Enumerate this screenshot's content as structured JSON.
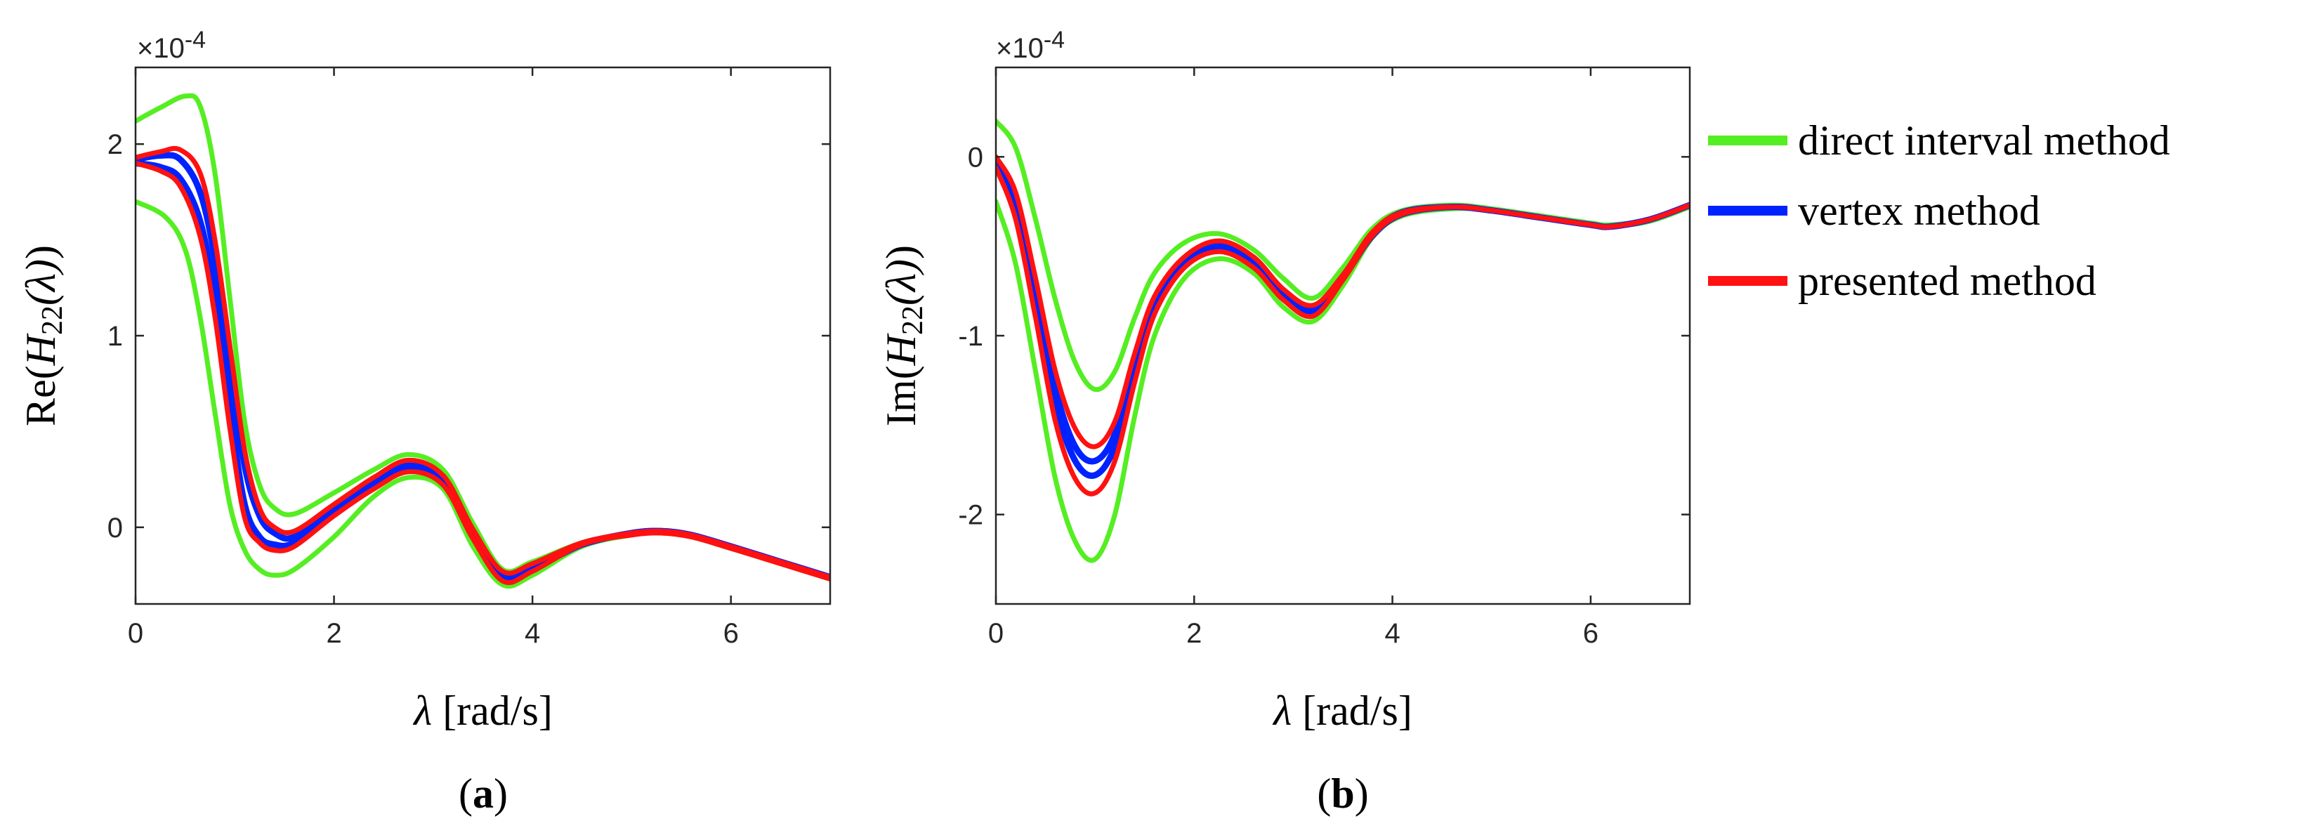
{
  "colors": {
    "direct": "#55ee22",
    "vertex": "#0022ff",
    "presented": "#ff1111"
  },
  "legend": [
    {
      "label": "direct interval method",
      "color": "#55ee22"
    },
    {
      "label": "vertex method",
      "color": "#0022ff"
    },
    {
      "label": "presented method",
      "color": "#ff1111"
    }
  ],
  "chart_data": [
    {
      "type": "line",
      "panel_label": "a",
      "multiplier": "10",
      "multiplier_exp": "-4",
      "ylabel_prefix": "Re(",
      "ylabel_var": "H",
      "ylabel_sub": "22",
      "ylabel_arg": "(λ)",
      "ylabel_suffix": ")",
      "xlabel_var": "λ",
      "xlabel_unit": " [rad/s]",
      "xlim": [
        0,
        7
      ],
      "ylim": [
        -0.4,
        2.4
      ],
      "xticks": [
        0,
        2,
        4,
        6
      ],
      "yticks": [
        0,
        1,
        2
      ],
      "series": [
        {
          "role": "direct-upper",
          "color": "#55ee22",
          "x": [
            0,
            0.25,
            0.5,
            0.65,
            0.8,
            0.95,
            1.1,
            1.25,
            1.4,
            1.6,
            2.0,
            2.4,
            2.75,
            3.1,
            3.4,
            3.7,
            4.0,
            4.5,
            5.0,
            5.3,
            5.6,
            6.0,
            6.5,
            7.0
          ],
          "y": [
            2.12,
            2.19,
            2.25,
            2.2,
            1.85,
            1.2,
            0.55,
            0.22,
            0.1,
            0.07,
            0.18,
            0.3,
            0.38,
            0.3,
            0.02,
            -0.22,
            -0.18,
            -0.08,
            -0.03,
            -0.02,
            -0.04,
            -0.1,
            -0.18,
            -0.26
          ]
        },
        {
          "role": "direct-lower",
          "color": "#55ee22",
          "x": [
            0,
            0.3,
            0.5,
            0.65,
            0.8,
            0.95,
            1.1,
            1.25,
            1.4,
            1.6,
            2.0,
            2.4,
            2.75,
            3.1,
            3.4,
            3.7,
            4.0,
            4.5,
            5.0,
            5.3,
            5.6,
            6.0,
            6.5,
            7.0
          ],
          "y": [
            1.7,
            1.62,
            1.45,
            1.1,
            0.6,
            0.12,
            -0.12,
            -0.22,
            -0.25,
            -0.22,
            -0.05,
            0.16,
            0.26,
            0.2,
            -0.1,
            -0.3,
            -0.25,
            -0.1,
            -0.04,
            -0.03,
            -0.05,
            -0.11,
            -0.19,
            -0.27
          ]
        },
        {
          "role": "vertex-upper",
          "color": "#0022ff",
          "x": [
            0,
            0.25,
            0.45,
            0.65,
            0.8,
            0.95,
            1.1,
            1.25,
            1.4,
            1.6,
            2.0,
            2.4,
            2.75,
            3.1,
            3.4,
            3.7,
            4.0,
            4.5,
            5.0,
            5.3,
            5.6,
            6.0,
            6.5,
            7.0
          ],
          "y": [
            1.92,
            1.94,
            1.92,
            1.75,
            1.4,
            0.85,
            0.32,
            0.06,
            -0.03,
            -0.05,
            0.1,
            0.24,
            0.33,
            0.26,
            -0.02,
            -0.24,
            -0.2,
            -0.09,
            -0.03,
            -0.02,
            -0.04,
            -0.1,
            -0.18,
            -0.26
          ]
        },
        {
          "role": "vertex-lower",
          "color": "#0022ff",
          "x": [
            0,
            0.25,
            0.45,
            0.65,
            0.8,
            0.95,
            1.1,
            1.25,
            1.4,
            1.6,
            2.0,
            2.4,
            2.75,
            3.1,
            3.4,
            3.7,
            4.0,
            4.5,
            5.0,
            5.3,
            5.6,
            6.0,
            6.5,
            7.0
          ],
          "y": [
            1.9,
            1.88,
            1.82,
            1.6,
            1.2,
            0.62,
            0.12,
            -0.05,
            -0.09,
            -0.08,
            0.08,
            0.22,
            0.31,
            0.24,
            -0.04,
            -0.27,
            -0.22,
            -0.09,
            -0.03,
            -0.02,
            -0.04,
            -0.1,
            -0.18,
            -0.26
          ]
        },
        {
          "role": "presented-upper",
          "color": "#ff1111",
          "x": [
            0,
            0.25,
            0.45,
            0.65,
            0.8,
            0.95,
            1.1,
            1.25,
            1.4,
            1.6,
            2.0,
            2.4,
            2.75,
            3.1,
            3.4,
            3.7,
            4.0,
            4.5,
            5.0,
            5.3,
            5.6,
            6.0,
            6.5,
            7.0
          ],
          "y": [
            1.93,
            1.96,
            1.97,
            1.85,
            1.5,
            0.95,
            0.4,
            0.1,
            0.0,
            -0.02,
            0.12,
            0.26,
            0.35,
            0.27,
            -0.01,
            -0.23,
            -0.19,
            -0.08,
            -0.03,
            -0.02,
            -0.04,
            -0.1,
            -0.18,
            -0.26
          ]
        },
        {
          "role": "presented-lower",
          "color": "#ff1111",
          "x": [
            0,
            0.25,
            0.45,
            0.65,
            0.8,
            0.95,
            1.1,
            1.25,
            1.4,
            1.6,
            2.0,
            2.4,
            2.75,
            3.1,
            3.4,
            3.7,
            4.0,
            4.5,
            5.0,
            5.3,
            5.6,
            6.0,
            6.5,
            7.0
          ],
          "y": [
            1.9,
            1.86,
            1.78,
            1.52,
            1.1,
            0.52,
            0.05,
            -0.08,
            -0.12,
            -0.1,
            0.06,
            0.2,
            0.29,
            0.22,
            -0.06,
            -0.28,
            -0.23,
            -0.09,
            -0.04,
            -0.03,
            -0.05,
            -0.11,
            -0.19,
            -0.27
          ]
        }
      ]
    },
    {
      "type": "line",
      "panel_label": "b",
      "multiplier": "10",
      "multiplier_exp": "-4",
      "ylabel_prefix": "Im(",
      "ylabel_var": "H",
      "ylabel_sub": "22",
      "ylabel_arg": "(λ)",
      "ylabel_suffix": ")",
      "xlabel_var": "λ",
      "xlabel_unit": " [rad/s]",
      "xlim": [
        0,
        7
      ],
      "ylim": [
        -2.5,
        0.5
      ],
      "xticks": [
        0,
        2,
        4,
        6
      ],
      "yticks": [
        -2,
        -1,
        0
      ],
      "series": [
        {
          "role": "direct-upper",
          "color": "#55ee22",
          "x": [
            0,
            0.2,
            0.4,
            0.6,
            0.8,
            1.0,
            1.2,
            1.4,
            1.6,
            1.9,
            2.25,
            2.6,
            2.9,
            3.2,
            3.5,
            3.8,
            4.1,
            4.6,
            5.0,
            5.5,
            6.0,
            6.2,
            6.6,
            7.0
          ],
          "y": [
            0.2,
            0.05,
            -0.35,
            -0.8,
            -1.15,
            -1.3,
            -1.2,
            -0.9,
            -0.65,
            -0.48,
            -0.43,
            -0.52,
            -0.68,
            -0.79,
            -0.62,
            -0.4,
            -0.3,
            -0.27,
            -0.29,
            -0.33,
            -0.37,
            -0.38,
            -0.35,
            -0.27
          ]
        },
        {
          "role": "direct-lower",
          "color": "#55ee22",
          "x": [
            0,
            0.2,
            0.4,
            0.6,
            0.8,
            1.0,
            1.2,
            1.4,
            1.6,
            1.9,
            2.25,
            2.6,
            2.9,
            3.2,
            3.5,
            3.8,
            4.1,
            4.6,
            5.0,
            5.5,
            6.0,
            6.2,
            6.6,
            7.0
          ],
          "y": [
            -0.25,
            -0.6,
            -1.2,
            -1.8,
            -2.15,
            -2.25,
            -2.0,
            -1.45,
            -1.0,
            -0.68,
            -0.57,
            -0.65,
            -0.84,
            -0.92,
            -0.72,
            -0.45,
            -0.33,
            -0.29,
            -0.3,
            -0.34,
            -0.38,
            -0.39,
            -0.36,
            -0.28
          ]
        },
        {
          "role": "vertex-upper",
          "color": "#0022ff",
          "x": [
            0,
            0.2,
            0.4,
            0.6,
            0.8,
            1.0,
            1.2,
            1.4,
            1.6,
            1.9,
            2.25,
            2.6,
            2.9,
            3.2,
            3.5,
            3.8,
            4.1,
            4.6,
            5.0,
            5.5,
            6.0,
            6.2,
            6.6,
            7.0
          ],
          "y": [
            -0.02,
            -0.25,
            -0.75,
            -1.3,
            -1.62,
            -1.7,
            -1.55,
            -1.15,
            -0.82,
            -0.58,
            -0.49,
            -0.58,
            -0.76,
            -0.85,
            -0.67,
            -0.43,
            -0.31,
            -0.28,
            -0.3,
            -0.34,
            -0.38,
            -0.39,
            -0.35,
            -0.27
          ]
        },
        {
          "role": "vertex-lower",
          "color": "#0022ff",
          "x": [
            0,
            0.2,
            0.4,
            0.6,
            0.8,
            1.0,
            1.2,
            1.4,
            1.6,
            1.9,
            2.25,
            2.6,
            2.9,
            3.2,
            3.5,
            3.8,
            4.1,
            4.6,
            5.0,
            5.5,
            6.0,
            6.2,
            6.6,
            7.0
          ],
          "y": [
            -0.04,
            -0.3,
            -0.82,
            -1.38,
            -1.7,
            -1.78,
            -1.62,
            -1.2,
            -0.85,
            -0.6,
            -0.51,
            -0.6,
            -0.78,
            -0.87,
            -0.68,
            -0.44,
            -0.32,
            -0.28,
            -0.3,
            -0.34,
            -0.38,
            -0.39,
            -0.35,
            -0.27
          ]
        },
        {
          "role": "presented-upper",
          "color": "#ff1111",
          "x": [
            0,
            0.2,
            0.4,
            0.6,
            0.8,
            1.0,
            1.2,
            1.4,
            1.6,
            1.9,
            2.25,
            2.6,
            2.9,
            3.2,
            3.5,
            3.8,
            4.1,
            4.6,
            5.0,
            5.5,
            6.0,
            6.2,
            6.6,
            7.0
          ],
          "y": [
            0.0,
            -0.2,
            -0.68,
            -1.2,
            -1.52,
            -1.62,
            -1.48,
            -1.1,
            -0.78,
            -0.56,
            -0.47,
            -0.56,
            -0.74,
            -0.83,
            -0.66,
            -0.42,
            -0.31,
            -0.28,
            -0.3,
            -0.34,
            -0.38,
            -0.39,
            -0.35,
            -0.27
          ]
        },
        {
          "role": "presented-lower",
          "color": "#ff1111",
          "x": [
            0,
            0.2,
            0.4,
            0.6,
            0.8,
            1.0,
            1.2,
            1.4,
            1.6,
            1.9,
            2.25,
            2.6,
            2.9,
            3.2,
            3.5,
            3.8,
            4.1,
            4.6,
            5.0,
            5.5,
            6.0,
            6.2,
            6.6,
            7.0
          ],
          "y": [
            -0.06,
            -0.35,
            -0.9,
            -1.48,
            -1.8,
            -1.88,
            -1.7,
            -1.26,
            -0.88,
            -0.62,
            -0.53,
            -0.62,
            -0.8,
            -0.89,
            -0.69,
            -0.44,
            -0.32,
            -0.28,
            -0.3,
            -0.34,
            -0.38,
            -0.39,
            -0.35,
            -0.27
          ]
        }
      ]
    }
  ]
}
